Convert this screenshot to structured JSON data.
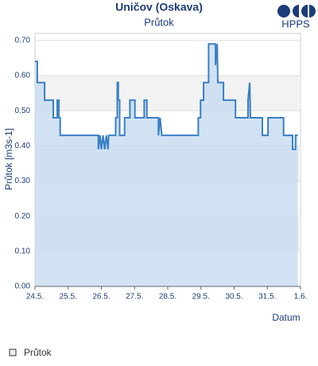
{
  "chart_data": {
    "type": "line",
    "title": "Uničov (Oskava)",
    "subtitle": "Průtok",
    "logo": "HPPS",
    "ylabel": "Průtok [m3s-1]",
    "xlabel": "Datum",
    "x": [
      0,
      0.07,
      0.07,
      0.29,
      0.29,
      0.55,
      0.55,
      0.67,
      0.67,
      0.72,
      0.72,
      0.76,
      0.76,
      1.91,
      1.91,
      1.96,
      2.0,
      2.05,
      2.1,
      2.15,
      2.2,
      2.22,
      2.43,
      2.43,
      2.48,
      2.48,
      2.51,
      2.51,
      2.55,
      2.55,
      2.7,
      2.7,
      2.86,
      2.86,
      3.01,
      3.01,
      3.29,
      3.29,
      3.37,
      3.37,
      3.72,
      3.72,
      3.77,
      3.82,
      4.92,
      4.92,
      4.99,
      4.99,
      5.08,
      5.08,
      5.23,
      5.23,
      5.44,
      5.44,
      5.49,
      5.51,
      5.68,
      5.68,
      6.04,
      6.04,
      6.42,
      6.42,
      6.47,
      6.49,
      6.85,
      6.85,
      7.02,
      7.02,
      7.49,
      7.49,
      7.76,
      7.76,
      7.85,
      7.85,
      7.92
    ],
    "series": [
      {
        "name": "Průtok",
        "color": "#3a7fc4",
        "fill": "#c5dcf0",
        "values": [
          0.64,
          0.64,
          0.58,
          0.58,
          0.53,
          0.53,
          0.48,
          0.48,
          0.53,
          0.53,
          0.48,
          0.48,
          0.43,
          0.43,
          0.39,
          0.43,
          0.39,
          0.43,
          0.39,
          0.43,
          0.39,
          0.43,
          0.43,
          0.48,
          0.48,
          0.58,
          0.58,
          0.53,
          0.53,
          0.43,
          0.43,
          0.48,
          0.48,
          0.53,
          0.53,
          0.48,
          0.48,
          0.53,
          0.53,
          0.48,
          0.48,
          0.43,
          0.48,
          0.43,
          0.43,
          0.48,
          0.48,
          0.53,
          0.53,
          0.58,
          0.58,
          0.69,
          0.69,
          0.63,
          0.69,
          0.58,
          0.58,
          0.53,
          0.53,
          0.48,
          0.48,
          0.53,
          0.58,
          0.48,
          0.48,
          0.43,
          0.43,
          0.48,
          0.48,
          0.43,
          0.43,
          0.39,
          0.39,
          0.43,
          0.43
        ]
      }
    ],
    "xlim": [
      0,
      8
    ],
    "xticks": [
      {
        "value": 0,
        "label": "24.5."
      },
      {
        "value": 1,
        "label": "25.5."
      },
      {
        "value": 2,
        "label": "26.5."
      },
      {
        "value": 3,
        "label": "27.5."
      },
      {
        "value": 4,
        "label": "28.5."
      },
      {
        "value": 5,
        "label": "29.5."
      },
      {
        "value": 6,
        "label": "30.5."
      },
      {
        "value": 7,
        "label": "31.5."
      },
      {
        "value": 8,
        "label": "1.6."
      }
    ],
    "ylim": [
      0,
      0.72
    ],
    "yticks": [
      {
        "value": 0,
        "label": "0.00"
      },
      {
        "value": 0.1,
        "label": "0.10"
      },
      {
        "value": 0.2,
        "label": "0.20"
      },
      {
        "value": 0.3,
        "label": "0.30"
      },
      {
        "value": 0.4,
        "label": "0.40"
      },
      {
        "value": 0.5,
        "label": "0.50"
      },
      {
        "value": 0.6,
        "label": "0.60"
      },
      {
        "value": 0.7,
        "label": "0.70"
      }
    ],
    "grid": true
  }
}
